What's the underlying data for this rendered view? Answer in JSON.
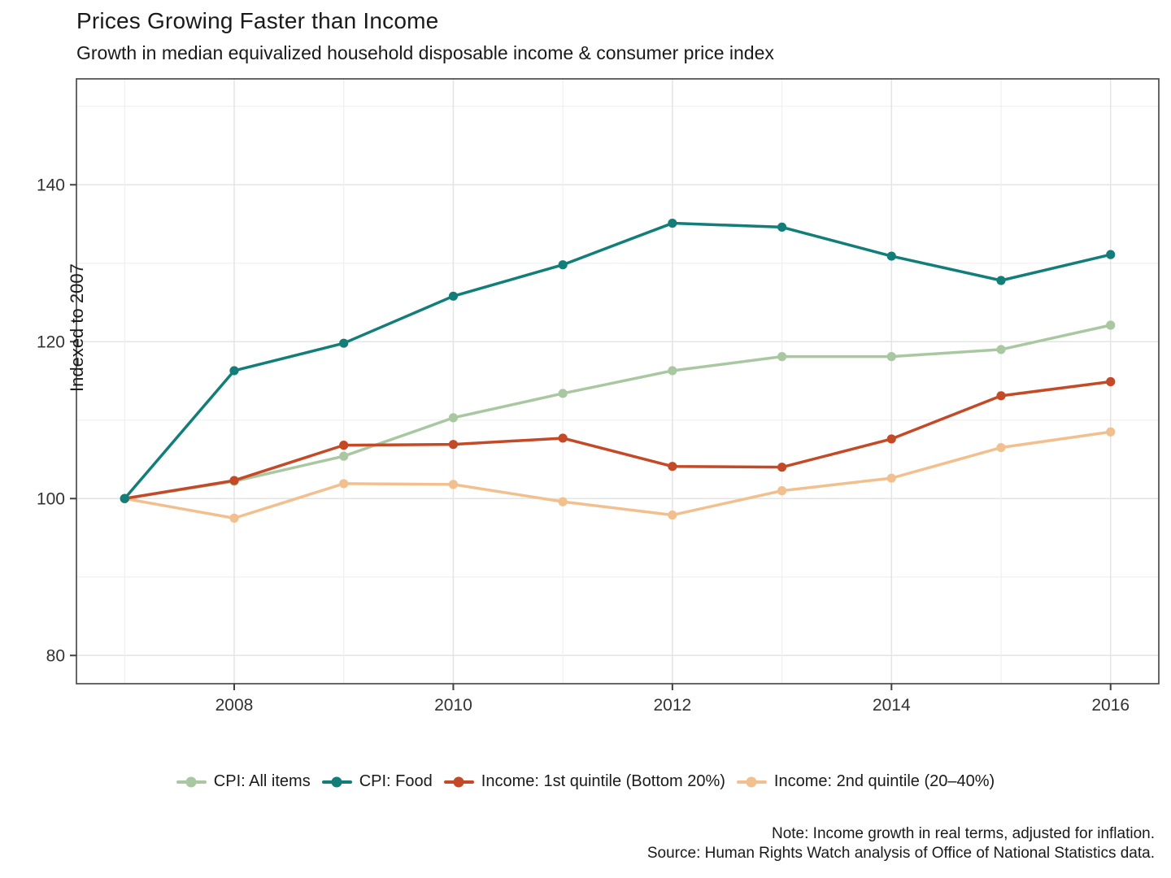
{
  "header": {
    "title": "Prices Growing Faster than Income",
    "subtitle": "Growth in median equivalized household disposable income & consumer price index"
  },
  "notes": {
    "note": "Note: Income growth in real terms, adjusted for inflation.",
    "source": "Source: Human Rights Watch analysis of Office of National Statistics data."
  },
  "chart_data": {
    "type": "line",
    "title": "Prices Growing Faster than Income",
    "subtitle": "Growth in median equivalized household disposable income & consumer price index",
    "xlabel": "",
    "ylabel": "Indexed to 2007",
    "x": [
      2007,
      2008,
      2009,
      2010,
      2011,
      2012,
      2013,
      2014,
      2015,
      2016
    ],
    "x_ticks": [
      2008,
      2010,
      2012,
      2014,
      2016
    ],
    "y_ticks": [
      80,
      100,
      120,
      140
    ],
    "y_minor_gridlines": [
      90,
      110,
      130,
      150
    ],
    "x_range": [
      2006.56,
      2016.44
    ],
    "y_range": [
      76.4,
      153.5
    ],
    "grid": true,
    "legend_position": "bottom",
    "series": [
      {
        "name": "CPI: All items",
        "color": "#a9c8a1",
        "values": [
          100,
          102.2,
          105.4,
          110.3,
          113.4,
          116.3,
          118.1,
          118.1,
          119.0,
          122.1
        ]
      },
      {
        "name": "CPI: Food",
        "color": "#137e79",
        "values": [
          100,
          116.3,
          119.8,
          125.8,
          129.8,
          135.1,
          134.6,
          130.9,
          127.8,
          131.1
        ]
      },
      {
        "name": "Income: 1st quintile (Bottom 20%)",
        "color": "#c44a27",
        "values": [
          100,
          102.3,
          106.8,
          106.9,
          107.7,
          104.1,
          104.0,
          107.6,
          113.1,
          114.9
        ]
      },
      {
        "name": "Income: 2nd quintile (20–40%)",
        "color": "#f2c08e",
        "values": [
          100,
          97.5,
          101.9,
          101.8,
          99.6,
          97.9,
          101.0,
          102.6,
          106.5,
          108.5
        ]
      }
    ]
  },
  "colors": {
    "grid_major": "#e4e4e4",
    "grid_minor": "#f0f0f0",
    "panel_border": "#404040",
    "tick_mark": "#404040",
    "tick_text": "#333333"
  }
}
